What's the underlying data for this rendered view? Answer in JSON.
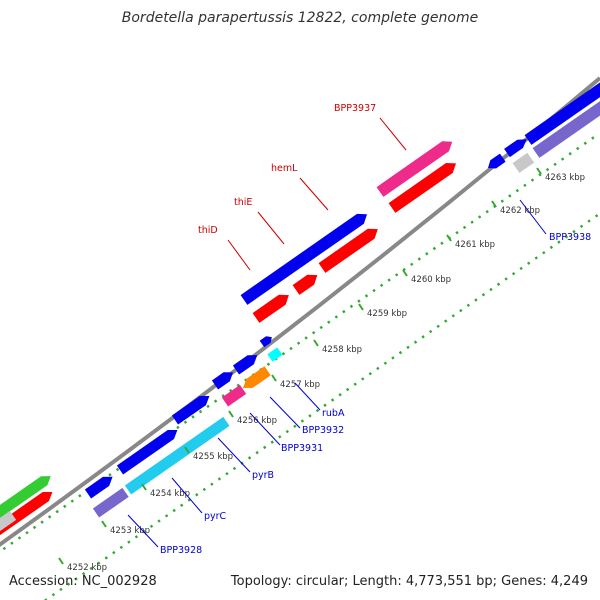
{
  "header": {
    "title": "Bordetella parapertussis 12822, complete genome"
  },
  "footer": {
    "accession": "Accession: NC_002928",
    "stats": "Topology: circular; Length: 4,773,551 bp; Genes: 4,249"
  },
  "scale_labels": [
    "4252 kbp",
    "4253 kbp",
    "4254 kbp",
    "4255 kbp",
    "4256 kbp",
    "4257 kbp",
    "4258 kbp",
    "4259 kbp",
    "4260 kbp",
    "4261 kbp",
    "4262 kbp",
    "4263 kbp"
  ],
  "gene_labels_top": [
    "thiD",
    "thiE",
    "hemL",
    "BPP3937"
  ],
  "gene_labels_bottom": [
    "rubA",
    "BPP3932",
    "BPP3931",
    "pyrB",
    "pyrC",
    "BPP3928",
    "BPP3938"
  ],
  "colors": {
    "forward_cds": "#0000ee",
    "reverse_cds": "#ff0000",
    "magenta": "#ee2a8a",
    "cyan": "#22ccee",
    "aqua": "#00ffff",
    "orange": "#ff8800",
    "lavender": "#7766cc",
    "green": "#33cc33",
    "grey": "#c8c8c8",
    "backbone": "#888888",
    "ticks": "#33aa33",
    "label_top": "#cc0000",
    "label_bottom": "#0000cc"
  }
}
